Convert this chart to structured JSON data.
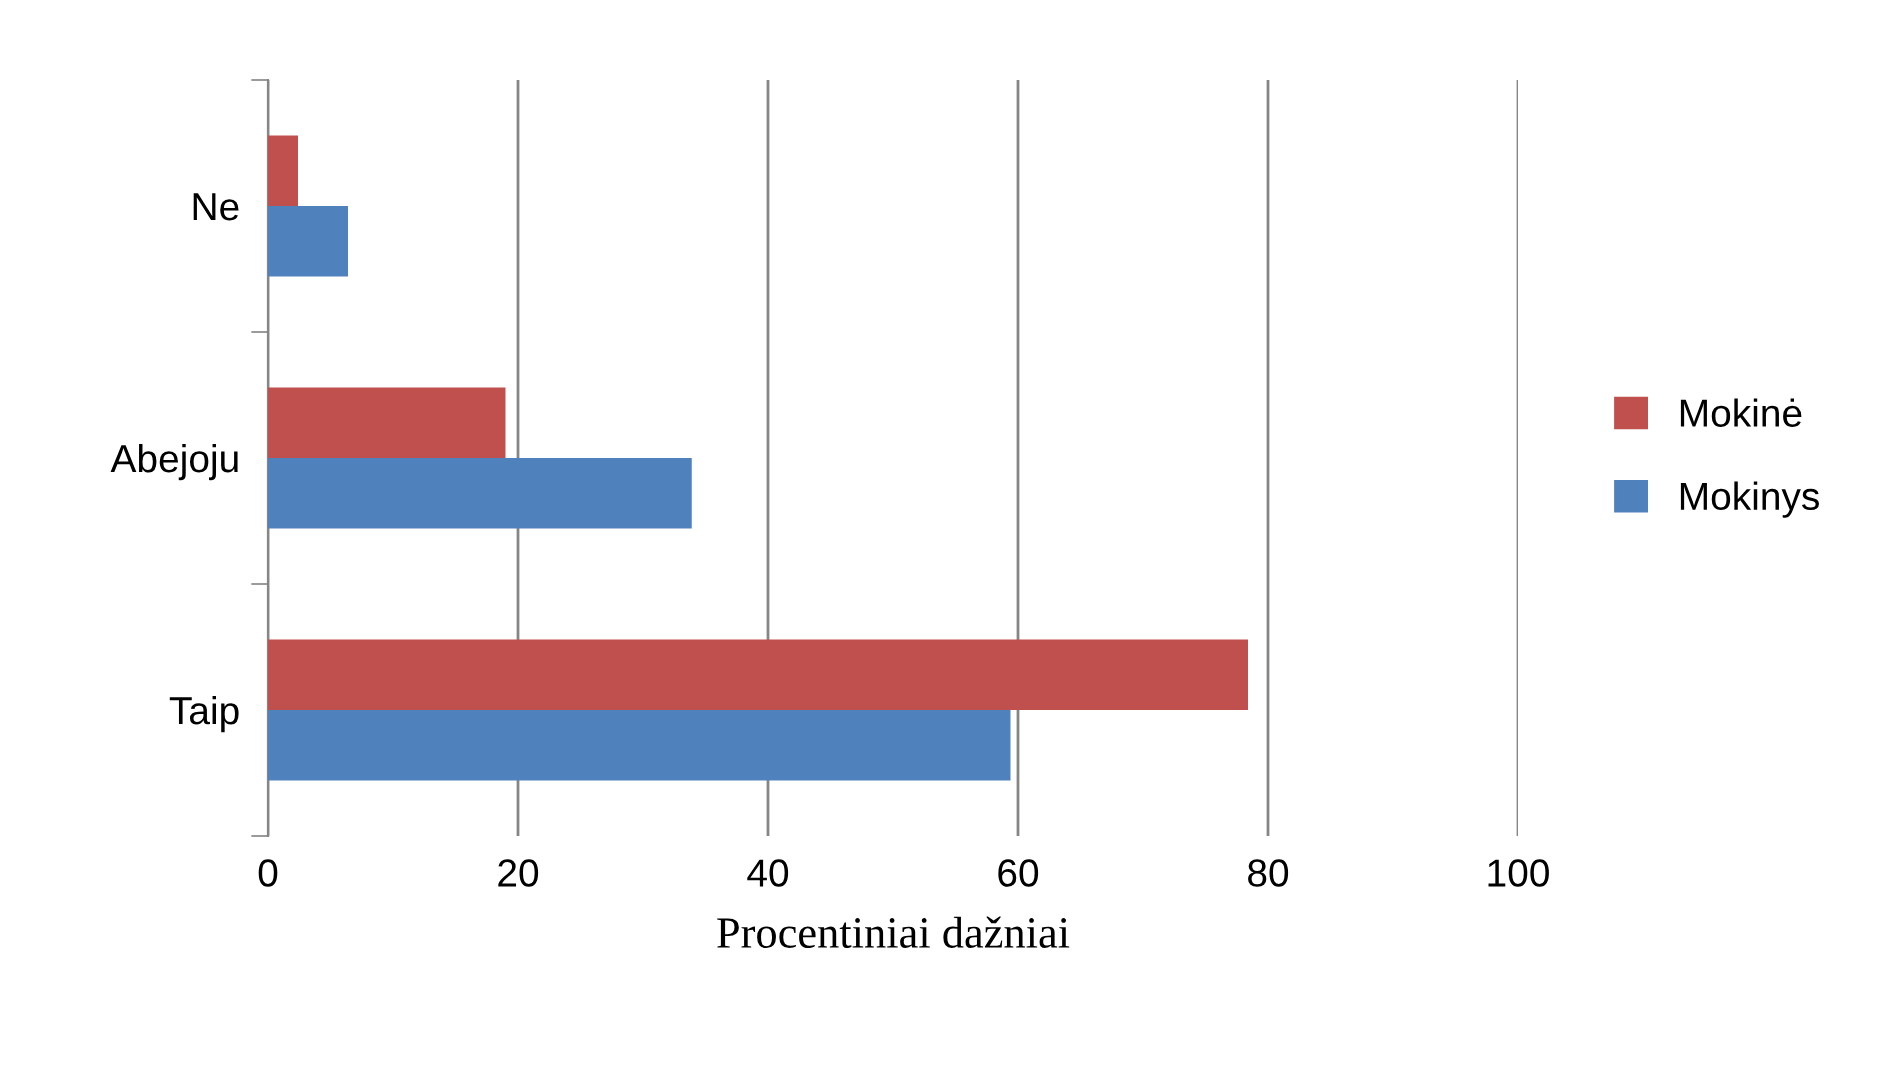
{
  "chart_data": {
    "type": "bar",
    "orientation": "horizontal",
    "categories": [
      "Ne",
      "Abejoju",
      "Taip"
    ],
    "series": [
      {
        "name": "Mokinys",
        "color": "#4f81bd",
        "values": [
          6.4,
          33.9,
          59.4
        ]
      },
      {
        "name": "Mokinė",
        "color": "#c0504d",
        "values": [
          2.4,
          19.0,
          78.4
        ]
      }
    ],
    "xlabel": "Procentiniai dažniai",
    "xlim": [
      0,
      100
    ],
    "xticks": [
      0,
      20,
      40,
      60,
      80,
      100
    ],
    "grid": "x",
    "legend": "right"
  }
}
